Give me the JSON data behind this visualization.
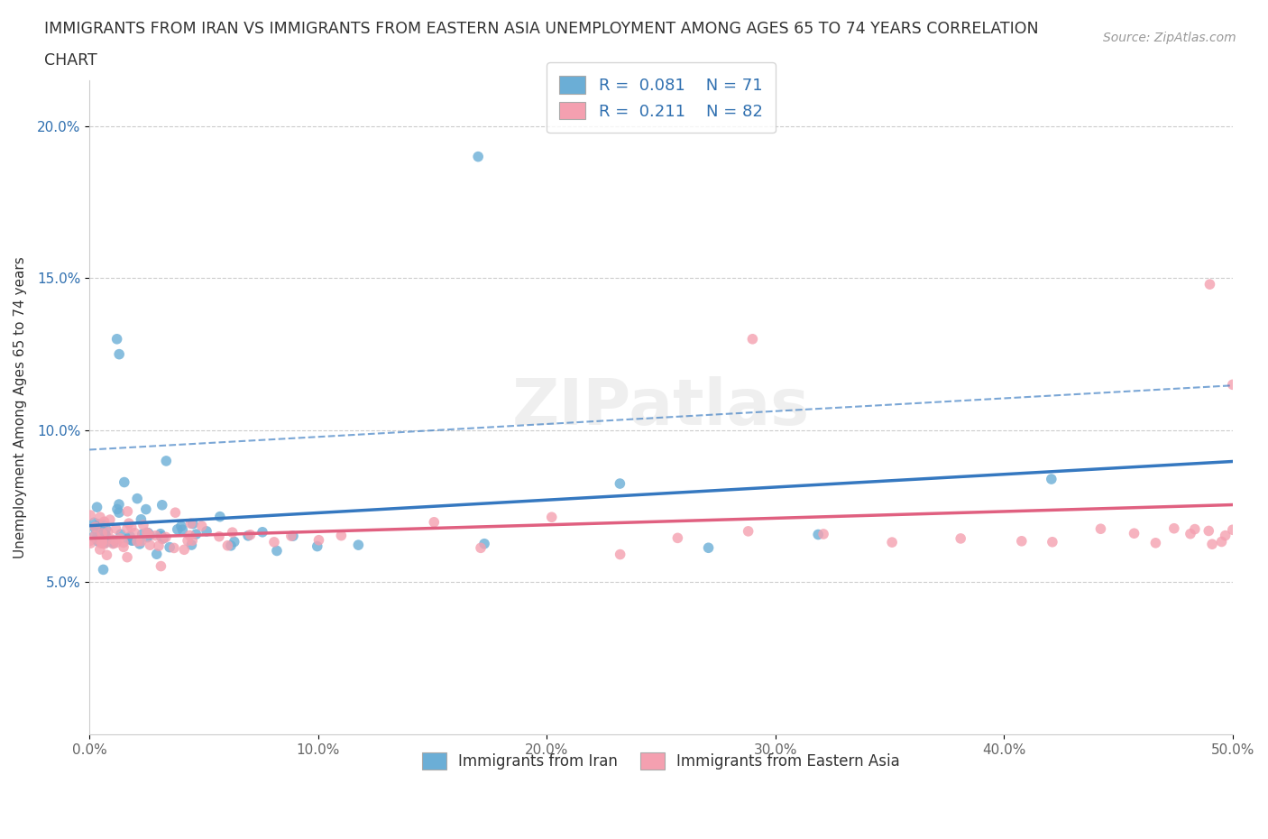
{
  "title_line1": "IMMIGRANTS FROM IRAN VS IMMIGRANTS FROM EASTERN ASIA UNEMPLOYMENT AMONG AGES 65 TO 74 YEARS CORRELATION",
  "title_line2": "CHART",
  "source": "Source: ZipAtlas.com",
  "ylabel": "Unemployment Among Ages 65 to 74 years",
  "xlim": [
    0.0,
    0.5
  ],
  "ylim": [
    0.0,
    0.215
  ],
  "x_ticks": [
    0.0,
    0.1,
    0.2,
    0.3,
    0.4,
    0.5
  ],
  "y_ticks": [
    0.05,
    0.1,
    0.15,
    0.2
  ],
  "x_tick_labels": [
    "0.0%",
    "10.0%",
    "20.0%",
    "30.0%",
    "40.0%",
    "50.0%"
  ],
  "y_tick_labels": [
    "5.0%",
    "10.0%",
    "15.0%",
    "20.0%"
  ],
  "iran_color": "#6baed6",
  "eastern_asia_color": "#f4a0b0",
  "iran_line_color": "#3578c0",
  "eastern_line_color": "#e06080",
  "iran_label": "Immigrants from Iran",
  "eastern_asia_label": "Immigrants from Eastern Asia",
  "iran_R": 0.081,
  "iran_N": 71,
  "eastern_asia_R": 0.211,
  "eastern_asia_N": 82,
  "legend_R_color": "#3070b0",
  "watermark_text": "ZIPatlas",
  "iran_x": [
    0.001,
    0.002,
    0.002,
    0.003,
    0.003,
    0.003,
    0.004,
    0.004,
    0.004,
    0.005,
    0.005,
    0.006,
    0.006,
    0.007,
    0.007,
    0.008,
    0.008,
    0.009,
    0.009,
    0.01,
    0.01,
    0.011,
    0.012,
    0.013,
    0.014,
    0.015,
    0.016,
    0.017,
    0.018,
    0.019,
    0.02,
    0.021,
    0.022,
    0.023,
    0.024,
    0.025,
    0.026,
    0.027,
    0.028,
    0.029,
    0.03,
    0.031,
    0.032,
    0.033,
    0.034,
    0.035,
    0.036,
    0.038,
    0.04,
    0.042,
    0.044,
    0.046,
    0.048,
    0.05,
    0.055,
    0.06,
    0.065,
    0.07,
    0.075,
    0.08,
    0.09,
    0.1,
    0.11,
    0.12,
    0.15,
    0.17,
    0.2,
    0.23,
    0.27,
    0.32,
    0.42
  ],
  "iran_y": [
    0.065,
    0.065,
    0.07,
    0.062,
    0.065,
    0.068,
    0.064,
    0.066,
    0.07,
    0.065,
    0.068,
    0.064,
    0.065,
    0.067,
    0.065,
    0.063,
    0.068,
    0.065,
    0.066,
    0.065,
    0.07,
    0.065,
    0.075,
    0.065,
    0.08,
    0.082,
    0.065,
    0.065,
    0.065,
    0.068,
    0.065,
    0.075,
    0.065,
    0.078,
    0.065,
    0.065,
    0.065,
    0.065,
    0.065,
    0.065,
    0.065,
    0.065,
    0.068,
    0.065,
    0.065,
    0.09,
    0.065,
    0.065,
    0.065,
    0.065,
    0.065,
    0.065,
    0.07,
    0.065,
    0.065,
    0.065,
    0.065,
    0.065,
    0.068,
    0.065,
    0.065,
    0.065,
    0.065,
    0.065,
    0.19,
    0.065,
    0.13,
    0.08,
    0.065,
    0.065,
    0.08
  ],
  "eastern_x": [
    0.001,
    0.002,
    0.002,
    0.003,
    0.003,
    0.003,
    0.004,
    0.004,
    0.005,
    0.005,
    0.006,
    0.006,
    0.007,
    0.007,
    0.008,
    0.008,
    0.009,
    0.009,
    0.01,
    0.01,
    0.011,
    0.012,
    0.013,
    0.014,
    0.015,
    0.016,
    0.017,
    0.018,
    0.019,
    0.02,
    0.021,
    0.022,
    0.023,
    0.024,
    0.025,
    0.026,
    0.027,
    0.028,
    0.03,
    0.032,
    0.034,
    0.036,
    0.038,
    0.04,
    0.042,
    0.044,
    0.046,
    0.048,
    0.05,
    0.055,
    0.06,
    0.065,
    0.07,
    0.08,
    0.09,
    0.1,
    0.11,
    0.13,
    0.15,
    0.17,
    0.2,
    0.23,
    0.26,
    0.29,
    0.32,
    0.35,
    0.38,
    0.4,
    0.42,
    0.44,
    0.455,
    0.465,
    0.475,
    0.48,
    0.485,
    0.49,
    0.492,
    0.495,
    0.497,
    0.499,
    0.5,
    0.5
  ],
  "eastern_y": [
    0.065,
    0.062,
    0.068,
    0.064,
    0.065,
    0.07,
    0.065,
    0.063,
    0.066,
    0.065,
    0.065,
    0.068,
    0.065,
    0.063,
    0.065,
    0.068,
    0.065,
    0.063,
    0.065,
    0.065,
    0.068,
    0.065,
    0.063,
    0.065,
    0.068,
    0.065,
    0.062,
    0.065,
    0.063,
    0.065,
    0.068,
    0.065,
    0.065,
    0.068,
    0.065,
    0.063,
    0.065,
    0.065,
    0.065,
    0.065,
    0.065,
    0.065,
    0.068,
    0.065,
    0.065,
    0.065,
    0.065,
    0.068,
    0.065,
    0.065,
    0.065,
    0.065,
    0.065,
    0.065,
    0.065,
    0.065,
    0.065,
    0.13,
    0.065,
    0.065,
    0.065,
    0.065,
    0.065,
    0.065,
    0.065,
    0.065,
    0.065,
    0.065,
    0.065,
    0.065,
    0.065,
    0.065,
    0.065,
    0.065,
    0.065,
    0.065,
    0.065,
    0.065,
    0.065,
    0.148,
    0.115,
    0.065
  ]
}
